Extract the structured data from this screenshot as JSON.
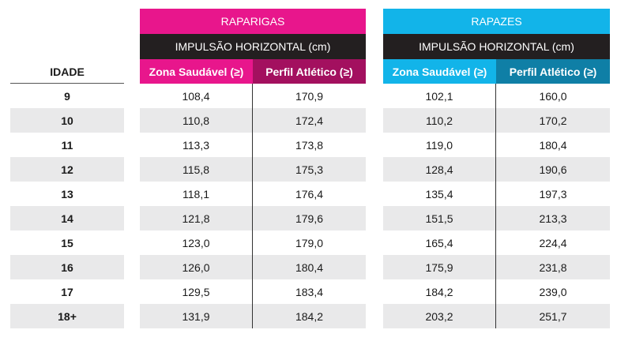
{
  "header": {
    "girls": {
      "title": "RAPARIGAS",
      "subtitle": "IMPULSÃO HORIZONTAL (cm)",
      "col1": "Zona Saudável (≥)",
      "col2": "Perfil Atlético (≥)"
    },
    "boys": {
      "title": "RAPAZES",
      "subtitle": "IMPULSÃO HORIZONTAL (cm)",
      "col1": "Zona Saudável (≥)",
      "col2": "Perfil Atlético (≥)"
    },
    "age_label": "IDADE"
  },
  "colors": {
    "girls_accent": "#e8168c",
    "girls_dark": "#a3105f",
    "boys_accent": "#12b4e9",
    "boys_dark": "#0f7fa6",
    "subheader": "#231f20",
    "row_shade": "#e9e9ea"
  },
  "rows": [
    {
      "age": "9",
      "g_saudavel": "108,4",
      "g_atletico": "170,9",
      "b_saudavel": "102,1",
      "b_atletico": "160,0"
    },
    {
      "age": "10",
      "g_saudavel": "110,8",
      "g_atletico": "172,4",
      "b_saudavel": "110,2",
      "b_atletico": "170,2"
    },
    {
      "age": "11",
      "g_saudavel": "113,3",
      "g_atletico": "173,8",
      "b_saudavel": "119,0",
      "b_atletico": "180,4"
    },
    {
      "age": "12",
      "g_saudavel": "115,8",
      "g_atletico": "175,3",
      "b_saudavel": "128,4",
      "b_atletico": "190,6"
    },
    {
      "age": "13",
      "g_saudavel": "118,1",
      "g_atletico": "176,4",
      "b_saudavel": "135,4",
      "b_atletico": "197,3"
    },
    {
      "age": "14",
      "g_saudavel": "121,8",
      "g_atletico": "179,6",
      "b_saudavel": "151,5",
      "b_atletico": "213,3"
    },
    {
      "age": "15",
      "g_saudavel": "123,0",
      "g_atletico": "179,0",
      "b_saudavel": "165,4",
      "b_atletico": "224,4"
    },
    {
      "age": "16",
      "g_saudavel": "126,0",
      "g_atletico": "180,4",
      "b_saudavel": "175,9",
      "b_atletico": "231,8"
    },
    {
      "age": "17",
      "g_saudavel": "129,5",
      "g_atletico": "183,4",
      "b_saudavel": "184,2",
      "b_atletico": "239,0"
    },
    {
      "age": "18+",
      "g_saudavel": "131,9",
      "g_atletico": "184,2",
      "b_saudavel": "203,2",
      "b_atletico": "251,7"
    }
  ]
}
